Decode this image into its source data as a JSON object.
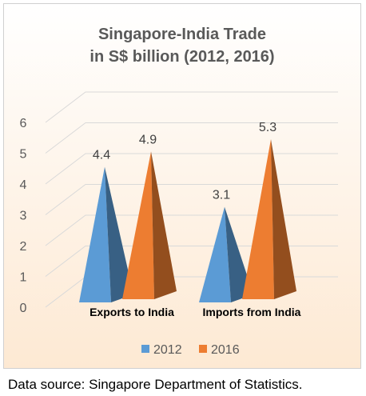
{
  "chart_data": {
    "type": "bar",
    "title_lines": [
      "Singapore-India Trade",
      "in S$ billion (2012, 2016)"
    ],
    "categories": [
      "Exports to India",
      "Imports from India"
    ],
    "series": [
      {
        "name": "2012",
        "values": [
          4.4,
          3.1
        ],
        "labels": [
          "4.4",
          "3.1"
        ],
        "color": "#5b9bd5"
      },
      {
        "name": "2016",
        "values": [
          4.9,
          5.3
        ],
        "labels": [
          "4.9",
          "5.3"
        ],
        "color": "#ed7d31"
      }
    ],
    "ylim": [
      0,
      6
    ],
    "yticks": [
      "0",
      "1",
      "2",
      "3",
      "4",
      "5",
      "6"
    ],
    "grid": true,
    "legend_position": "bottom",
    "background_color": "#fde9d3",
    "title_color": "#595959"
  },
  "source_note": "Data source: Singapore Department of Statistics."
}
